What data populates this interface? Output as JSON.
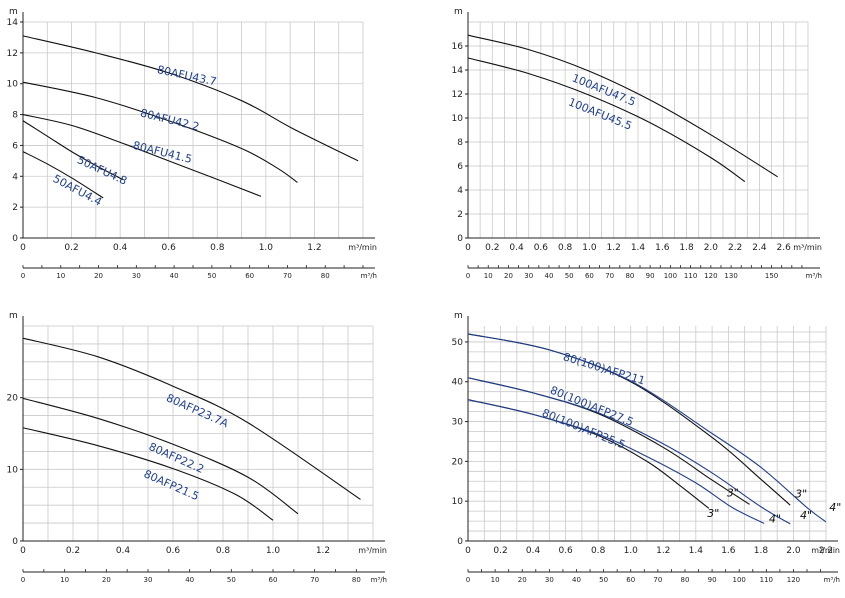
{
  "chart_data": [
    {
      "type": "line",
      "ylabel": "m",
      "xlabel": "m³/min",
      "x2label": "m³/h",
      "ylim": [
        0,
        14
      ],
      "yticks": [
        0,
        2,
        4,
        6,
        8,
        10,
        12,
        14
      ],
      "xlim": [
        0,
        1.4
      ],
      "xticks": [
        0,
        0.2,
        0.4,
        0.6,
        0.8,
        1.0,
        1.2
      ],
      "xtick_labels": [
        "0",
        "0.2",
        "0.4",
        "0.6",
        "0.8",
        "1.0",
        "1.2"
      ],
      "x2lim": [
        0,
        90
      ],
      "x2ticks": [
        0,
        10,
        20,
        30,
        40,
        50,
        60,
        70,
        80
      ],
      "grid": true,
      "series": [
        {
          "name": "80AFU43.7",
          "color": "#111111",
          "x": [
            0,
            0.3,
            0.6,
            0.9,
            1.11,
            1.38
          ],
          "y": [
            13.1,
            12.0,
            10.7,
            8.9,
            7.1,
            5.0
          ]
        },
        {
          "name": "80AFU42.2",
          "color": "#111111",
          "x": [
            0,
            0.3,
            0.6,
            0.9,
            1.05,
            1.13
          ],
          "y": [
            10.1,
            9.1,
            7.6,
            5.8,
            4.5,
            3.6
          ]
        },
        {
          "name": "80AFU41.5",
          "color": "#111111",
          "x": [
            0,
            0.2,
            0.4,
            0.6,
            0.8,
            0.98
          ],
          "y": [
            8.0,
            7.3,
            6.2,
            5.0,
            3.8,
            2.7
          ]
        },
        {
          "name": "50AFU4.8",
          "color": "#111111",
          "x": [
            0,
            0.1,
            0.2,
            0.3,
            0.41
          ],
          "y": [
            7.6,
            6.6,
            5.6,
            4.7,
            3.8
          ]
        },
        {
          "name": "50AFU4.4",
          "color": "#111111",
          "x": [
            0,
            0.1,
            0.2,
            0.33
          ],
          "y": [
            5.6,
            4.8,
            3.9,
            2.6
          ]
        }
      ],
      "labels": [
        {
          "text": "80AFU43.7",
          "x": 0.55,
          "y": 10.7,
          "angle": 12
        },
        {
          "text": "80AFU42.2",
          "x": 0.48,
          "y": 7.9,
          "angle": 14
        },
        {
          "text": "80AFU41.5",
          "x": 0.45,
          "y": 5.8,
          "angle": 14
        },
        {
          "text": "50AFU4.8",
          "x": 0.22,
          "y": 4.9,
          "angle": 25
        },
        {
          "text": "50AFU4.4",
          "x": 0.12,
          "y": 3.7,
          "angle": 28
        }
      ]
    },
    {
      "type": "line",
      "ylabel": "m",
      "xlabel": "m³/min",
      "x2label": "m³/h",
      "ylim": [
        0,
        18
      ],
      "yticks": [
        0,
        2,
        4,
        6,
        8,
        10,
        12,
        14,
        16
      ],
      "xlim": [
        0,
        2.8
      ],
      "xticks": [
        0,
        0.2,
        0.4,
        0.6,
        0.8,
        1.0,
        1.2,
        1.4,
        1.6,
        1.8,
        2.0,
        2.2,
        2.4,
        2.6
      ],
      "xtick_labels": [
        "0",
        "0.2",
        "0.4",
        "0.6",
        "0.8",
        "1.0",
        "1.2",
        "1.4",
        "1.6",
        "1.8",
        "2.0",
        "2.2",
        "2.4",
        "2.6"
      ],
      "x2lim": [
        0,
        168
      ],
      "x2ticks": [
        0,
        10,
        20,
        30,
        40,
        50,
        60,
        70,
        80,
        90,
        100,
        110,
        120,
        130,
        150
      ],
      "x2tick_pos": [
        0,
        10,
        20,
        30,
        40,
        50,
        60,
        70,
        80,
        90,
        100,
        110,
        120,
        130,
        150
      ],
      "grid": true,
      "series": [
        {
          "name": "100AFU47.5",
          "color": "#111111",
          "x": [
            0,
            0.5,
            1.0,
            1.5,
            2.0,
            2.55
          ],
          "y": [
            16.9,
            15.7,
            13.9,
            11.5,
            8.6,
            5.1
          ]
        },
        {
          "name": "100AFU45.5",
          "color": "#111111",
          "x": [
            0,
            0.5,
            1.0,
            1.5,
            2.0,
            2.28
          ],
          "y": [
            15.0,
            13.7,
            11.9,
            9.6,
            6.7,
            4.7
          ]
        }
      ],
      "labels": [
        {
          "text": "100AFU47.5",
          "x": 0.85,
          "y": 13.1,
          "angle": 22
        },
        {
          "text": "100AFU45.5",
          "x": 0.82,
          "y": 11.1,
          "angle": 22
        }
      ]
    },
    {
      "type": "line",
      "ylabel": "m",
      "xlabel": "m³/min",
      "x2label": "m³/h",
      "ylim": [
        0,
        30
      ],
      "yticks": [
        0,
        10,
        20
      ],
      "xlim": [
        0,
        1.4
      ],
      "xticks": [
        0,
        0.2,
        0.4,
        0.6,
        0.8,
        1.0,
        1.2
      ],
      "xtick_labels": [
        "0",
        "0.2",
        "0.4",
        "0.6",
        "0.8",
        "1.0",
        "1.2"
      ],
      "x2lim": [
        0,
        84
      ],
      "x2ticks": [
        0,
        10,
        20,
        30,
        40,
        50,
        60,
        70,
        80
      ],
      "grid": true,
      "series": [
        {
          "name": "80AFP23.7A",
          "color": "#111111",
          "x": [
            0,
            0.3,
            0.6,
            0.9,
            1.35
          ],
          "y": [
            28.3,
            25.7,
            21.6,
            16.5,
            5.8
          ]
        },
        {
          "name": "80AFP22.2",
          "color": "#111111",
          "x": [
            0,
            0.3,
            0.6,
            0.9,
            1.1
          ],
          "y": [
            19.9,
            17.1,
            13.5,
            8.9,
            3.8
          ]
        },
        {
          "name": "80AFP21.5",
          "color": "#111111",
          "x": [
            0,
            0.3,
            0.6,
            0.85,
            1.0
          ],
          "y": [
            15.8,
            13.3,
            10.1,
            6.5,
            2.9
          ]
        }
      ],
      "labels": [
        {
          "text": "80AFP23.7A",
          "x": 0.57,
          "y": 19.6,
          "angle": 24
        },
        {
          "text": "80AFP22.2",
          "x": 0.5,
          "y": 12.8,
          "angle": 24
        },
        {
          "text": "80AFP21.5",
          "x": 0.48,
          "y": 9.0,
          "angle": 24
        }
      ]
    },
    {
      "type": "line",
      "ylabel": "m",
      "xlabel": "m³/min",
      "x2label": "m³/h",
      "ylim": [
        0,
        54
      ],
      "yticks": [
        0,
        10,
        20,
        30,
        40,
        50
      ],
      "xlim": [
        0,
        2.2
      ],
      "xticks": [
        0,
        0.2,
        0.4,
        0.6,
        0.8,
        1.0,
        1.2,
        1.4,
        1.6,
        1.8,
        2.0,
        2.2
      ],
      "xtick_labels": [
        "0",
        "0.2",
        "0.4",
        "0.6",
        "0.8",
        "1.0",
        "1.2",
        "1.4",
        "1.6",
        "1.8",
        "2.0",
        "2.2"
      ],
      "x2lim": [
        0,
        132
      ],
      "x2ticks": [
        0,
        10,
        20,
        30,
        40,
        50,
        60,
        70,
        80,
        90,
        100,
        110,
        120
      ],
      "grid": true,
      "series": [
        {
          "name": "80(100)AFP211 3\"",
          "color": "#111111",
          "x": [
            0,
            0.5,
            1.0,
            1.5,
            1.8,
            1.98
          ],
          "y": [
            52.0,
            48.0,
            40.0,
            26.0,
            15.5,
            9.0
          ]
        },
        {
          "name": "80(100)AFP211 4\"",
          "color": "#1f3f8f",
          "x": [
            0,
            0.5,
            1.0,
            1.5,
            1.8,
            2.08,
            2.2
          ],
          "y": [
            52.0,
            48.0,
            40.2,
            27.0,
            18.5,
            8.5,
            4.8
          ]
        },
        {
          "name": "80(100)AFP27.5 3\"",
          "color": "#111111",
          "x": [
            0,
            0.4,
            0.8,
            1.2,
            1.5,
            1.73
          ],
          "y": [
            41.0,
            37.2,
            32.0,
            23.5,
            15.3,
            9.2
          ]
        },
        {
          "name": "80(100)AFP27.5 4\"",
          "color": "#1f3f8f",
          "x": [
            0,
            0.4,
            0.8,
            1.2,
            1.5,
            1.8,
            1.98
          ],
          "y": [
            41.0,
            37.2,
            32.2,
            24.4,
            17.1,
            8.6,
            4.3
          ]
        },
        {
          "name": "80(100)AFP25.5 3\"",
          "color": "#111111",
          "x": [
            0,
            0.4,
            0.8,
            1.1,
            1.3,
            1.48
          ],
          "y": [
            35.5,
            31.8,
            26.5,
            20.0,
            14.0,
            8.2
          ]
        },
        {
          "name": "80(100)AFP25.5 4\"",
          "color": "#1f3f8f",
          "x": [
            0,
            0.4,
            0.8,
            1.1,
            1.4,
            1.62,
            1.82
          ],
          "y": [
            35.5,
            31.8,
            26.8,
            21.2,
            14.6,
            8.5,
            4.4
          ]
        }
      ],
      "labels": [
        {
          "text": "80(100)AFP211",
          "x": 0.58,
          "y": 45.5,
          "angle": 17
        },
        {
          "text": "80(100)AFP27.5",
          "x": 0.5,
          "y": 37.2,
          "angle": 22
        },
        {
          "text": "80(100)AFP25.5",
          "x": 0.45,
          "y": 31.5,
          "angle": 22
        }
      ],
      "size_labels": [
        {
          "text": "3\"",
          "x": 1.59,
          "y": 11.2
        },
        {
          "text": "3\"",
          "x": 1.47,
          "y": 6.0
        },
        {
          "text": "3\"",
          "x": 2.01,
          "y": 10.9
        },
        {
          "text": "4\"",
          "x": 1.85,
          "y": 4.6
        },
        {
          "text": "4\"",
          "x": 2.04,
          "y": 5.5
        },
        {
          "text": "4\"",
          "x": 2.22,
          "y": 7.5
        }
      ]
    }
  ]
}
